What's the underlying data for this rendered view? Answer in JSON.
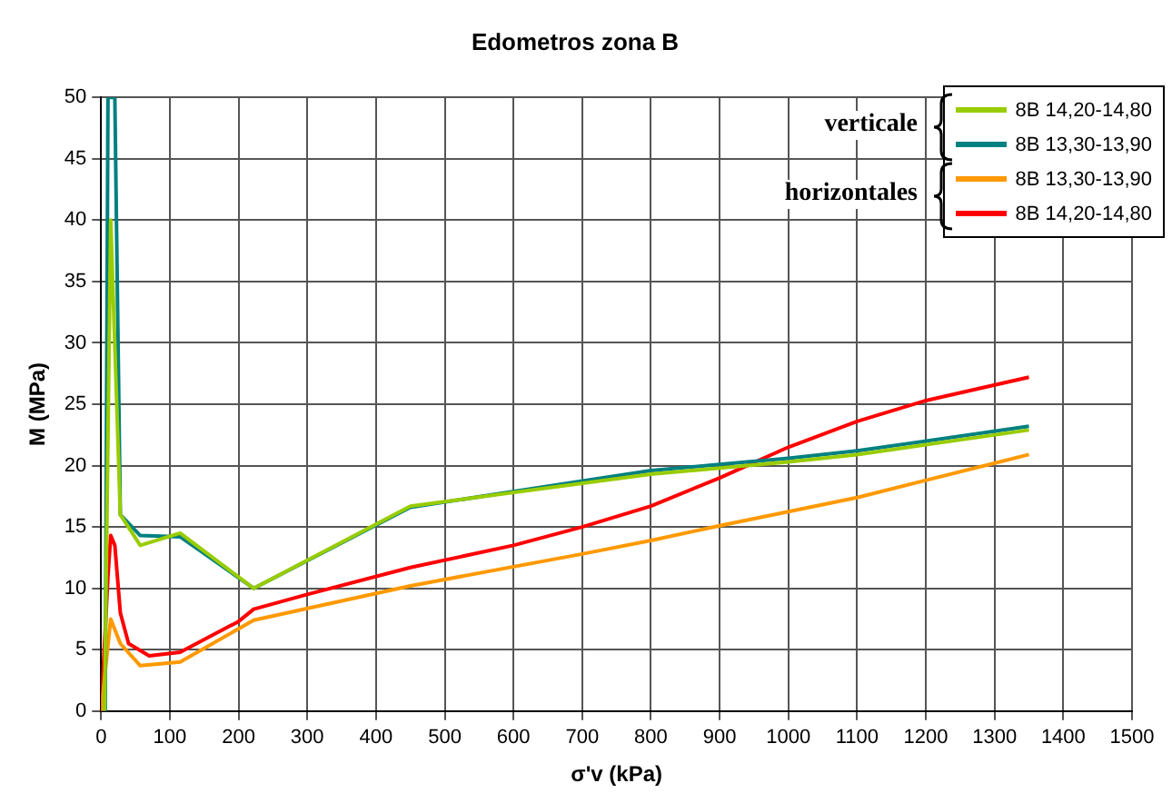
{
  "chart_data": {
    "type": "line",
    "title": "Edometros zona B",
    "xlabel": "σ'v (kPa)",
    "ylabel": "M (MPa)",
    "xlim": [
      0,
      1500
    ],
    "xticks": [
      0,
      100,
      200,
      300,
      400,
      500,
      600,
      700,
      800,
      900,
      1000,
      1100,
      1200,
      1300,
      1400,
      1500
    ],
    "ylim": [
      0,
      50
    ],
    "yticks": [
      0,
      5,
      10,
      15,
      20,
      25,
      30,
      35,
      40,
      45,
      50
    ],
    "grid": true,
    "legend": "top right",
    "marker": "none",
    "line_style": "solid",
    "annotations": [
      "verticale",
      "horizontales"
    ],
    "series": [
      {
        "name": "8B 14,20-14,80",
        "color": "#99cc00",
        "x": [
          5,
          14,
          28,
          57,
          115,
          222,
          450,
          800,
          1000,
          1100,
          1350
        ],
        "values": [
          0,
          40,
          16,
          13.5,
          14.5,
          10,
          16.7,
          19.3,
          20.3,
          20.9,
          22.9
        ]
      },
      {
        "name": "8B 13,30-13,90",
        "color": "#008080",
        "x": [
          6,
          10,
          20,
          28,
          57,
          115,
          222,
          450,
          800,
          1000,
          1100,
          1350
        ],
        "values": [
          0,
          50,
          50,
          16,
          14.3,
          14.2,
          10,
          16.6,
          19.6,
          20.6,
          21.2,
          23.2
        ]
      },
      {
        "name": "8B 13,30-13,90",
        "color": "#ff9900",
        "x": [
          0,
          14,
          28,
          57,
          115,
          222,
          450,
          700,
          800,
          900,
          1100,
          1350
        ],
        "values": [
          0,
          7.5,
          5.5,
          3.7,
          4,
          7.4,
          10.2,
          12.8,
          13.9,
          15.1,
          17.4,
          20.9
        ]
      },
      {
        "name": "8B 14,20-14,80",
        "color": "#ff0000",
        "x": [
          0,
          10,
          14,
          20,
          28,
          40,
          70,
          115,
          200,
          222,
          300,
          450,
          600,
          700,
          800,
          900,
          1000,
          1100,
          1200,
          1350
        ],
        "values": [
          0,
          11,
          14.3,
          13.5,
          8,
          5.5,
          4.5,
          4.8,
          7.3,
          8.3,
          9.5,
          11.7,
          13.5,
          15,
          16.7,
          19,
          21.5,
          23.6,
          25.3,
          27.2
        ]
      }
    ]
  }
}
